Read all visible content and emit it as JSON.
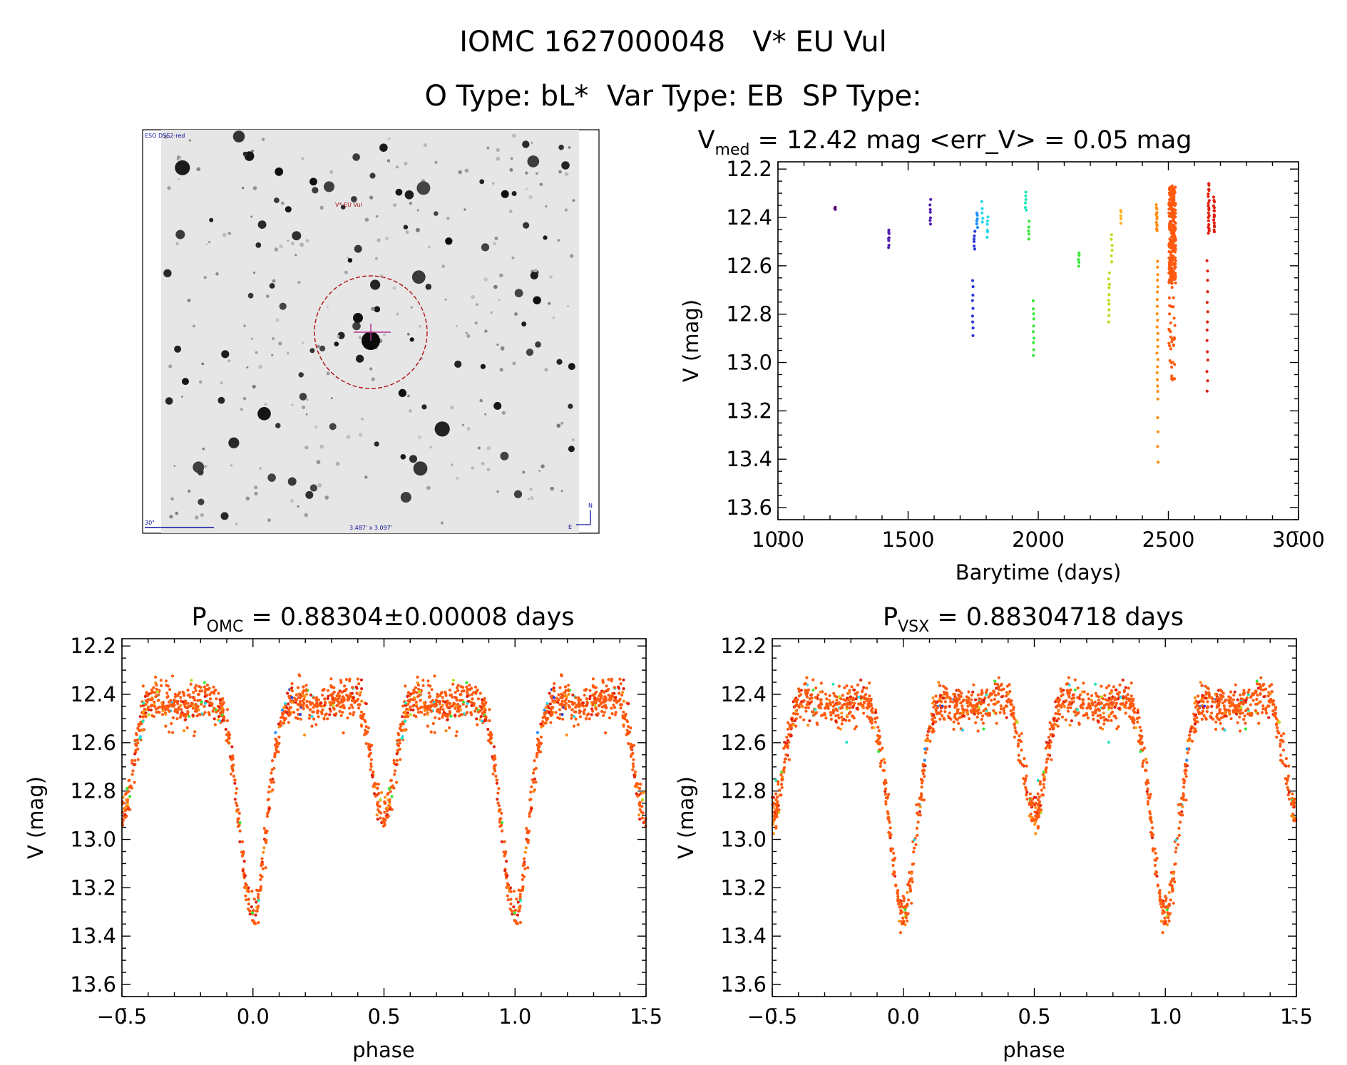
{
  "header": {
    "line1": "IOMC 1627000048   V* EU Vul",
    "line2": "O Type: bL*  Var Type: EB  SP Type:"
  },
  "finder": {
    "survey_label": "ESO DSS2-red",
    "object_label": "V* EU Vul",
    "scale_label": "30\"",
    "size_label": "3.487' x 3.097'",
    "north_label": "N",
    "east_label": "E",
    "colors": {
      "background": "#e8e8e8",
      "star": "#111111",
      "circle": "#b01010",
      "marker": "#b03090",
      "label": "#1010a0",
      "object_label": "#b01010"
    }
  },
  "colors": {
    "palette": [
      "#5a0078",
      "#5522b0",
      "#2a3ad8",
      "#1e90ff",
      "#28d8e8",
      "#20e8b8",
      "#38e838",
      "#b8e020",
      "#ffb020",
      "#ff8c10",
      "#ff5a10",
      "#e02010"
    ]
  },
  "chart_data": [
    {
      "id": "light-curve",
      "type": "scatter",
      "title_main": "V",
      "title_sub": "med",
      "title_rest": " = 12.42 mag <err_V> = 0.05 mag",
      "xlabel": "Barytime (days)",
      "ylabel": "V (mag)",
      "xlim": [
        1000,
        3000
      ],
      "ylim": [
        13.65,
        12.17
      ],
      "xticks": [
        "1000",
        "1500",
        "2000",
        "2500",
        "3000"
      ],
      "yticks": [
        "12.2",
        "12.4",
        "12.6",
        "12.8",
        "13.0",
        "13.2",
        "13.4",
        "13.6"
      ],
      "groups": [
        {
          "x": 1220,
          "color": "#5a0078",
          "ymin": 12.35,
          "ymax": 12.37,
          "n": 3
        },
        {
          "x": 1425,
          "color": "#5522b0",
          "ymin": 12.45,
          "ymax": 12.52,
          "n": 8
        },
        {
          "x": 1585,
          "color": "#5522b0",
          "ymin": 12.33,
          "ymax": 12.43,
          "n": 7
        },
        {
          "x": 1748,
          "color": "#2a3ad8",
          "ymin": 12.66,
          "ymax": 12.89,
          "n": 9
        },
        {
          "x": 1755,
          "color": "#2a3ad8",
          "ymin": 12.46,
          "ymax": 12.53,
          "n": 6
        },
        {
          "x": 1765,
          "color": "#1e90ff",
          "ymin": 12.38,
          "ymax": 12.44,
          "n": 6
        },
        {
          "x": 1785,
          "color": "#28d8e8",
          "ymin": 12.34,
          "ymax": 12.42,
          "n": 5
        },
        {
          "x": 1805,
          "color": "#28d8e8",
          "ymin": 12.4,
          "ymax": 12.48,
          "n": 6
        },
        {
          "x": 1952,
          "color": "#20e8b8",
          "ymin": 12.3,
          "ymax": 12.37,
          "n": 6
        },
        {
          "x": 1965,
          "color": "#38e838",
          "ymin": 12.42,
          "ymax": 12.49,
          "n": 5
        },
        {
          "x": 1982,
          "color": "#38e838",
          "ymin": 12.75,
          "ymax": 12.97,
          "n": 10
        },
        {
          "x": 2155,
          "color": "#38e838",
          "ymin": 12.55,
          "ymax": 12.6,
          "n": 5
        },
        {
          "x": 2272,
          "color": "#b8e020",
          "ymin": 12.63,
          "ymax": 12.83,
          "n": 10
        },
        {
          "x": 2282,
          "color": "#b8e020",
          "ymin": 12.47,
          "ymax": 12.58,
          "n": 6
        },
        {
          "x": 2318,
          "color": "#ffb020",
          "ymin": 12.37,
          "ymax": 12.42,
          "n": 5
        },
        {
          "x": 2455,
          "color": "#ff8c10",
          "ymin": 12.35,
          "ymax": 12.46,
          "n": 14
        },
        {
          "x": 2458,
          "color": "#ff8c10",
          "ymin": 12.58,
          "ymax": 13.15,
          "n": 22
        },
        {
          "x": 2460,
          "color": "#ff8c10",
          "ymin": 13.23,
          "ymax": 13.41,
          "n": 4
        },
        {
          "x": 2515,
          "color": "#ff5a10",
          "ymin": 12.27,
          "ymax": 13.08,
          "n": 320
        },
        {
          "x": 2655,
          "color": "#e02010",
          "ymin": 12.26,
          "ymax": 12.47,
          "n": 20
        },
        {
          "x": 2650,
          "color": "#e02010",
          "ymin": 12.58,
          "ymax": 13.12,
          "n": 14
        },
        {
          "x": 2675,
          "color": "#e02010",
          "ymin": 12.32,
          "ymax": 12.46,
          "n": 16
        }
      ]
    },
    {
      "id": "phase-omc",
      "type": "scatter",
      "title_main": "P",
      "title_sub": "OMC",
      "title_rest": " = 0.88304±0.00008 days",
      "xlabel": "phase",
      "ylabel": "V (mag)",
      "xlim": [
        -0.5,
        1.5
      ],
      "ylim": [
        13.65,
        12.17
      ],
      "xticks": [
        "−0.5",
        "0.0",
        "0.5",
        "1.0",
        "1.5"
      ],
      "yticks": [
        "12.2",
        "12.4",
        "12.6",
        "12.8",
        "13.0",
        "13.2",
        "13.4",
        "13.6"
      ],
      "model": {
        "mean": 12.4,
        "primary_depth": 0.95,
        "secondary_depth": 0.55,
        "width": 0.075,
        "scatter": 0.04,
        "n": 900
      }
    },
    {
      "id": "phase-vsx",
      "type": "scatter",
      "title_main": "P",
      "title_sub": "VSX",
      "title_rest": " = 0.88304718 days",
      "xlabel": "phase",
      "ylabel": "V (mag)",
      "xlim": [
        -0.5,
        1.5
      ],
      "ylim": [
        13.65,
        12.17
      ],
      "xticks": [
        "−0.5",
        "0.0",
        "0.5",
        "1.0",
        "1.5"
      ],
      "yticks": [
        "12.2",
        "12.4",
        "12.6",
        "12.8",
        "13.0",
        "13.2",
        "13.4",
        "13.6"
      ],
      "model": {
        "mean": 12.4,
        "primary_depth": 0.95,
        "secondary_depth": 0.55,
        "width": 0.075,
        "scatter": 0.04,
        "n": 900
      }
    }
  ]
}
